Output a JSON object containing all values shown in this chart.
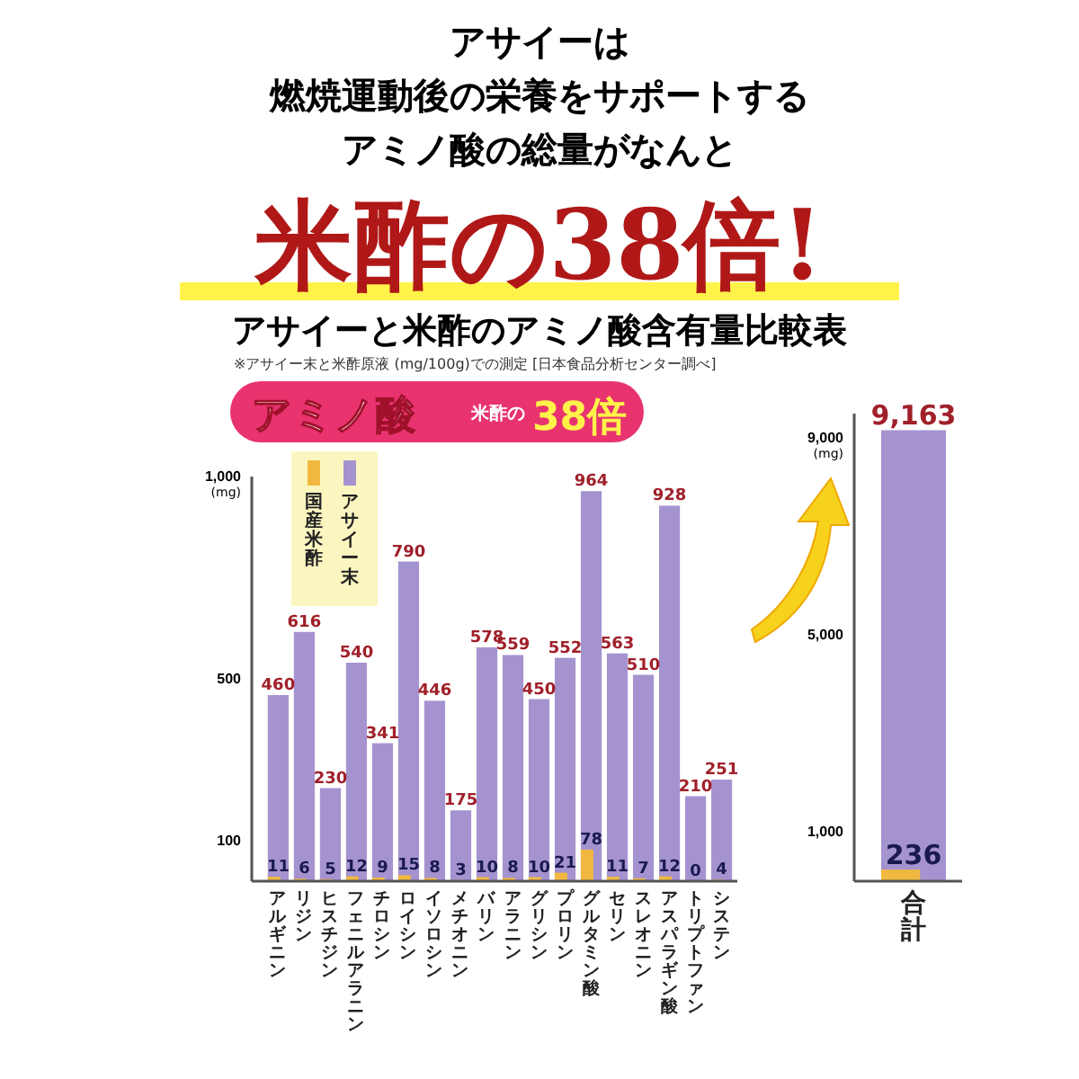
{
  "chart_data": [
    {
      "type": "bar",
      "title": "アサイーと米酢のアミノ酸含有量比較表",
      "subtitle": "※アサイー末と米酢原液 (mg/100g)での測定 [日本食品分析センター調べ]",
      "ylabel": "(mg)",
      "annotations": [
        "アサイーは",
        "燃焼運動後の栄養をサポートする",
        "アミノ酸の総量がなんと",
        "米酢の38倍!",
        "アミノ酸",
        "米酢の",
        "38倍"
      ],
      "categories": [
        "アルギニン",
        "リジン",
        "ヒスチジン",
        "フェニルアラニン",
        "チロシン",
        "ロイシン",
        "イソロシン",
        "メチオニン",
        "バリン",
        "アラニン",
        "グリシン",
        "プロリン",
        "グルタミン酸",
        "セリン",
        "スレオニン",
        "アスパラギン酸",
        "トリプトファン",
        "システン"
      ],
      "series": [
        {
          "name": "国産米酢",
          "color": "#f0b840",
          "values": [
            11,
            6,
            5,
            12,
            9,
            15,
            8,
            3,
            10,
            8,
            10,
            21,
            78,
            11,
            7,
            12,
            0,
            4
          ]
        },
        {
          "name": "アサイー末",
          "color": "#a593d0",
          "values": [
            460,
            616,
            230,
            540,
            341,
            790,
            446,
            175,
            578,
            559,
            450,
            552,
            964,
            563,
            510,
            928,
            210,
            251
          ]
        }
      ],
      "ylim": [
        0,
        1000
      ],
      "yticks": [
        100,
        500,
        {
          "value": 1000,
          "label": "1,000"
        }
      ],
      "data_labels": true,
      "legend": "top left",
      "grid": false
    },
    {
      "type": "bar",
      "ylabel": "(mg)",
      "categories": [
        "合計"
      ],
      "series": [
        {
          "color": "#f0b840",
          "values": [
            236
          ],
          "value_labels": [
            "236"
          ]
        },
        {
          "color": "#a593d0",
          "values": [
            9163
          ],
          "value_labels": [
            "9,163"
          ]
        }
      ],
      "ylim": [
        0,
        9500
      ],
      "yticks": [
        {
          "value": 1000,
          "label": "1,000"
        },
        {
          "value": 5000,
          "label": "5,000"
        },
        {
          "value": 9000,
          "label": "9,000"
        }
      ],
      "grid": false
    }
  ]
}
